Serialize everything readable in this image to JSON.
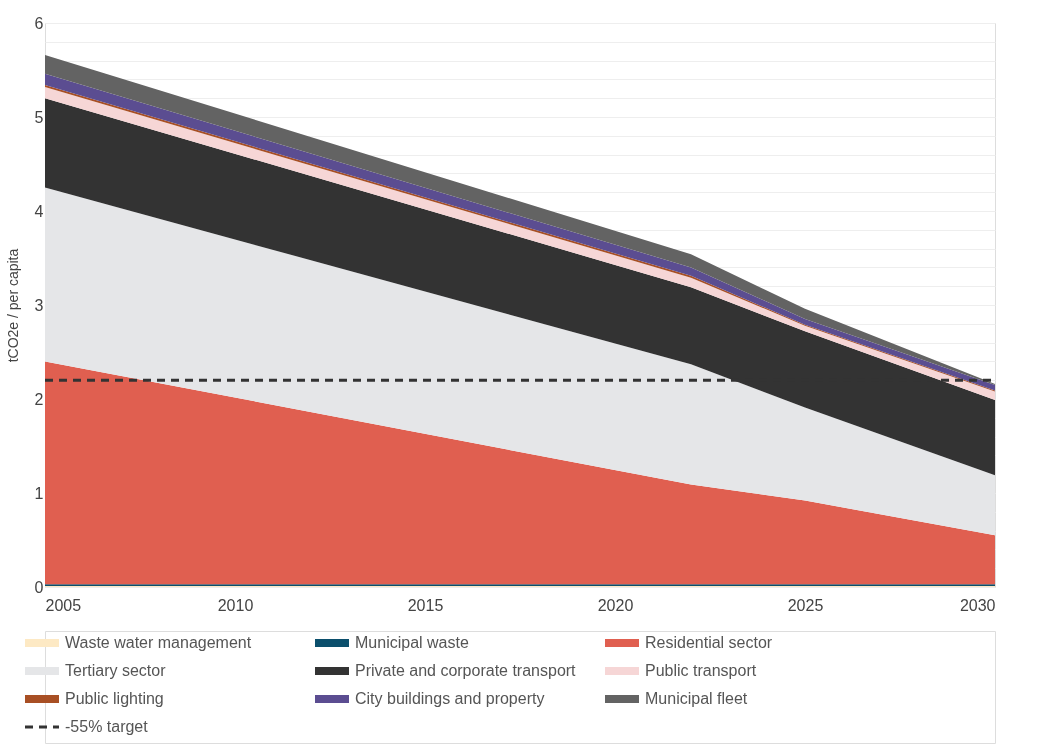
{
  "chart_data": {
    "type": "area",
    "stacked": true,
    "x": [
      2005,
      2022,
      2025,
      2030
    ],
    "ylabel": "tCO2e / per capita",
    "xlim": [
      2005,
      2030
    ],
    "xticks": [
      2005,
      2010,
      2015,
      2020,
      2025,
      2030
    ],
    "ylim": [
      0,
      6
    ],
    "yticks": [
      0,
      {
        "value": 0.2,
        "label": null
      },
      {
        "value": 0.4,
        "label": null
      },
      {
        "value": 0.6,
        "label": null
      },
      {
        "value": 0.8,
        "label": null
      },
      1,
      {
        "value": 1.2,
        "label": null
      },
      {
        "value": 1.4,
        "label": null
      },
      {
        "value": 1.6,
        "label": null
      },
      {
        "value": 1.8,
        "label": null
      },
      2,
      {
        "value": 2.2,
        "label": null
      },
      {
        "value": 2.4,
        "label": null
      },
      {
        "value": 2.6,
        "label": null
      },
      {
        "value": 2.8,
        "label": null
      },
      3,
      {
        "value": 3.2,
        "label": null
      },
      {
        "value": 3.4,
        "label": null
      },
      {
        "value": 3.6,
        "label": null
      },
      {
        "value": 3.8,
        "label": null
      },
      4,
      {
        "value": 4.2,
        "label": null
      },
      {
        "value": 4.4,
        "label": null
      },
      {
        "value": 4.6,
        "label": null
      },
      {
        "value": 4.8,
        "label": null
      },
      5,
      {
        "value": 5.2,
        "label": null
      },
      {
        "value": 5.4,
        "label": null
      },
      {
        "value": 5.6,
        "label": null
      },
      {
        "value": 5.8,
        "label": null
      },
      6
    ],
    "grid": "y",
    "legend": "bottom",
    "series": [
      {
        "name": "Waste water management",
        "color": "#fde9c4",
        "values": [
          0.01,
          0.01,
          0.01,
          0.01
        ]
      },
      {
        "name": "Municipal waste",
        "color": "#0b4f6c",
        "values": [
          0.02,
          0.02,
          0.02,
          0.02
        ]
      },
      {
        "name": "Residential sector",
        "color": "#e05f50",
        "values": [
          2.37,
          1.06,
          0.89,
          0.52
        ]
      },
      {
        "name": "Tertiary sector",
        "color": "#e5e6e8",
        "values": [
          1.85,
          1.28,
          0.99,
          0.64
        ]
      },
      {
        "name": "Private and corporate transport",
        "color": "#333333",
        "values": [
          0.95,
          0.82,
          0.81,
          0.8
        ]
      },
      {
        "name": "Public transport",
        "color": "#f6d6d6",
        "values": [
          0.12,
          0.1,
          0.06,
          0.09
        ]
      },
      {
        "name": "Public lighting",
        "color": "#a84f24",
        "values": [
          0.02,
          0.02,
          0.01,
          0.01
        ]
      },
      {
        "name": "City buildings and property",
        "color": "#5b4d91",
        "values": [
          0.12,
          0.09,
          0.06,
          0.06
        ]
      },
      {
        "name": "Municipal fleet",
        "color": "#636363",
        "values": [
          0.2,
          0.14,
          0.11,
          0.01
        ]
      }
    ],
    "ref_lines": [
      {
        "axis": "y",
        "value": 2.2,
        "label": "-55% target",
        "color": "#333333",
        "line_style": "dashed"
      }
    ]
  }
}
